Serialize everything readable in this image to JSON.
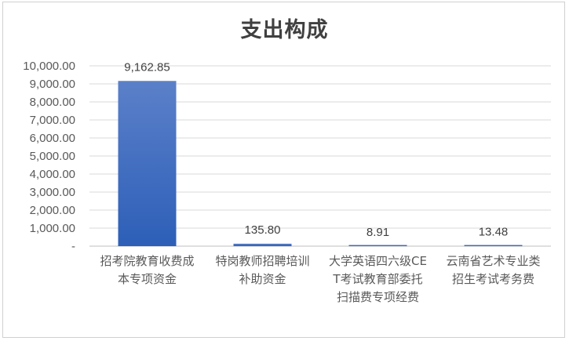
{
  "chart_data": {
    "type": "bar",
    "title": "支出构成",
    "categories": [
      "招考院教育收费成本专项资金",
      "特岗教师招聘培训补助资金",
      "大学英语四六级CET考试教育部委托扫描费专项经费",
      "云南省艺术专业类招生考试考务费"
    ],
    "values": [
      9162.85,
      135.8,
      8.91,
      13.48
    ],
    "data_labels": [
      "9,162.85",
      "135.80",
      "8.91",
      "13.48"
    ],
    "yticks": [
      "-",
      "1,000.00",
      "2,000.00",
      "3,000.00",
      "4,000.00",
      "5,000.00",
      "6,000.00",
      "7,000.00",
      "8,000.00",
      "9,000.00",
      "10,000.00"
    ],
    "ylim": [
      0,
      10000
    ],
    "grid": true,
    "legend": "none",
    "bar_color_top": "#5b80c9",
    "bar_color_bottom": "#2d5fb8"
  }
}
